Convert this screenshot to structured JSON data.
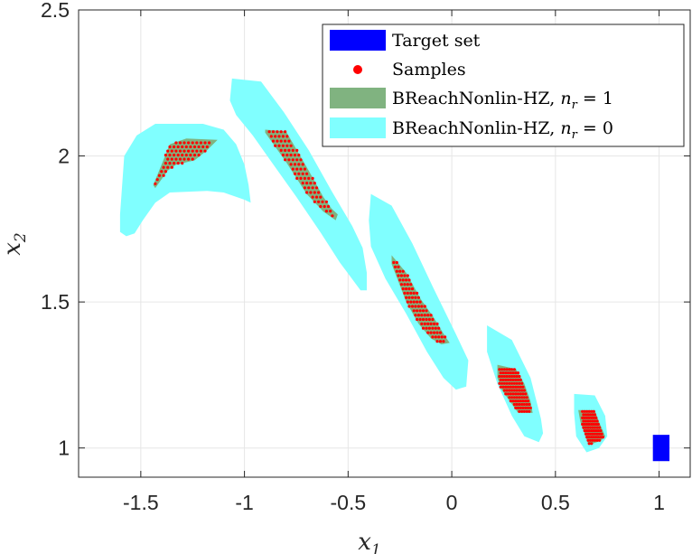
{
  "chart_data": {
    "type": "area",
    "xlabel": "x",
    "xlabel_sub": "1",
    "ylabel": "x",
    "ylabel_sub": "2",
    "xlim": [
      -1.8,
      1.15
    ],
    "ylim": [
      0.9,
      2.5
    ],
    "xticks": [
      -1.5,
      -1,
      -0.5,
      0,
      0.5,
      1
    ],
    "xtick_labels": [
      "-1.5",
      "-1",
      "-0.5",
      "0",
      "0.5",
      "1"
    ],
    "yticks": [
      1,
      1.5,
      2,
      2.5
    ],
    "ytick_labels": [
      "1",
      "1.5",
      "2",
      "2.5"
    ],
    "grid": true,
    "legend_position": "top-right",
    "colors": {
      "target": "#0000ff",
      "samples": "#ff0000",
      "nr1": "#80b380",
      "nr0": "#80ffff"
    },
    "legend": {
      "target": "Target set",
      "samples": "Samples",
      "nr1_prefix": "BReachNonlin-HZ, ",
      "nr1_eq": " = 1",
      "nr0_prefix": "BReachNonlin-HZ, ",
      "nr0_eq": " = 0",
      "n_symbol": "n",
      "r_sub": "r"
    },
    "target_set": {
      "x": [
        0.97,
        1.05
      ],
      "y": [
        0.955,
        1.045
      ]
    },
    "nr0_regions": [
      [
        [
          -1.58,
          2.0
        ],
        [
          -1.52,
          2.07
        ],
        [
          -1.43,
          2.11
        ],
        [
          -1.2,
          2.11
        ],
        [
          -1.1,
          2.09
        ],
        [
          -1.04,
          2.04
        ],
        [
          -1.0,
          1.97
        ],
        [
          -0.98,
          1.9
        ],
        [
          -0.97,
          1.84
        ],
        [
          -1.0,
          1.85
        ],
        [
          -1.1,
          1.875
        ],
        [
          -1.18,
          1.88
        ],
        [
          -1.36,
          1.875
        ],
        [
          -1.43,
          1.84
        ],
        [
          -1.49,
          1.78
        ],
        [
          -1.53,
          1.735
        ],
        [
          -1.57,
          1.725
        ],
        [
          -1.6,
          1.74
        ],
        [
          -1.6,
          1.8
        ]
      ],
      [
        [
          -1.06,
          2.265
        ],
        [
          -0.92,
          2.255
        ],
        [
          -0.81,
          2.15
        ],
        [
          -0.69,
          2.02
        ],
        [
          -0.58,
          1.88
        ],
        [
          -0.48,
          1.76
        ],
        [
          -0.43,
          1.685
        ],
        [
          -0.41,
          1.6
        ],
        [
          -0.41,
          1.54
        ],
        [
          -0.44,
          1.54
        ],
        [
          -0.54,
          1.635
        ],
        [
          -0.63,
          1.735
        ],
        [
          -0.75,
          1.86
        ],
        [
          -0.86,
          1.97
        ],
        [
          -0.96,
          2.07
        ],
        [
          -1.04,
          2.14
        ],
        [
          -1.07,
          2.19
        ]
      ],
      [
        [
          -0.39,
          1.87
        ],
        [
          -0.29,
          1.83
        ],
        [
          -0.19,
          1.7
        ],
        [
          -0.09,
          1.55
        ],
        [
          0.02,
          1.39
        ],
        [
          0.08,
          1.3
        ],
        [
          0.07,
          1.21
        ],
        [
          0.02,
          1.2
        ],
        [
          -0.04,
          1.24
        ],
        [
          -0.12,
          1.33
        ],
        [
          -0.22,
          1.46
        ],
        [
          -0.32,
          1.58
        ],
        [
          -0.39,
          1.69
        ],
        [
          -0.4,
          1.78
        ]
      ],
      [
        [
          0.17,
          1.42
        ],
        [
          0.29,
          1.37
        ],
        [
          0.38,
          1.24
        ],
        [
          0.43,
          1.1
        ],
        [
          0.44,
          1.05
        ],
        [
          0.42,
          1.02
        ],
        [
          0.35,
          1.04
        ],
        [
          0.29,
          1.11
        ],
        [
          0.22,
          1.22
        ],
        [
          0.17,
          1.33
        ]
      ],
      [
        [
          0.59,
          1.185
        ],
        [
          0.69,
          1.18
        ],
        [
          0.74,
          1.11
        ],
        [
          0.75,
          1.04
        ],
        [
          0.71,
          1.0
        ],
        [
          0.65,
          0.985
        ],
        [
          0.6,
          1.04
        ],
        [
          0.59,
          1.12
        ]
      ]
    ],
    "nr1_regions": [
      [
        [
          -1.4,
          1.97
        ],
        [
          -1.36,
          2.04
        ],
        [
          -1.28,
          2.06
        ],
        [
          -1.13,
          2.055
        ],
        [
          -1.18,
          2.02
        ],
        [
          -1.24,
          1.985
        ],
        [
          -1.33,
          1.97
        ],
        [
          -1.37,
          1.95
        ],
        [
          -1.43,
          1.89
        ],
        [
          -1.44,
          1.9
        ]
      ],
      [
        [
          -0.9,
          2.09
        ],
        [
          -0.8,
          2.085
        ],
        [
          -0.69,
          1.95
        ],
        [
          -0.62,
          1.86
        ],
        [
          -0.58,
          1.82
        ],
        [
          -0.55,
          1.8
        ],
        [
          -0.56,
          1.78
        ],
        [
          -0.62,
          1.81
        ],
        [
          -0.7,
          1.87
        ],
        [
          -0.8,
          1.98
        ],
        [
          -0.9,
          2.08
        ]
      ],
      [
        [
          -0.29,
          1.66
        ],
        [
          -0.22,
          1.6
        ],
        [
          -0.15,
          1.51
        ],
        [
          -0.09,
          1.45
        ],
        [
          -0.03,
          1.38
        ],
        [
          -0.01,
          1.36
        ],
        [
          -0.05,
          1.355
        ],
        [
          -0.1,
          1.375
        ],
        [
          -0.16,
          1.425
        ],
        [
          -0.22,
          1.5
        ],
        [
          -0.26,
          1.575
        ],
        [
          -0.29,
          1.63
        ]
      ],
      [
        [
          0.22,
          1.285
        ],
        [
          0.31,
          1.27
        ],
        [
          0.35,
          1.22
        ],
        [
          0.38,
          1.16
        ],
        [
          0.39,
          1.12
        ],
        [
          0.32,
          1.12
        ],
        [
          0.28,
          1.16
        ],
        [
          0.24,
          1.2
        ],
        [
          0.22,
          1.24
        ]
      ],
      [
        [
          0.61,
          1.13
        ],
        [
          0.69,
          1.13
        ],
        [
          0.71,
          1.09
        ],
        [
          0.74,
          1.04
        ],
        [
          0.72,
          1.025
        ],
        [
          0.66,
          1.01
        ],
        [
          0.64,
          1.05
        ],
        [
          0.62,
          1.09
        ]
      ]
    ],
    "sample_regions": [
      {
        "x": [
          -1.43,
          -1.16
        ],
        "y": [
          1.905,
          2.055
        ],
        "dx": 0.02,
        "dy": 0.014
      },
      {
        "x": [
          -0.88,
          -0.56
        ],
        "y": [
          1.795,
          2.085
        ],
        "dx": 0.019,
        "dy": 0.016
      },
      {
        "x": [
          -0.28,
          -0.03
        ],
        "y": [
          1.365,
          1.655
        ],
        "dx": 0.015,
        "dy": 0.015
      },
      {
        "x": [
          0.23,
          0.38
        ],
        "y": [
          1.125,
          1.28
        ],
        "dx": 0.012,
        "dy": 0.012
      },
      {
        "x": [
          0.63,
          0.73
        ],
        "y": [
          1.015,
          1.125
        ],
        "dx": 0.011,
        "dy": 0.011
      }
    ]
  }
}
